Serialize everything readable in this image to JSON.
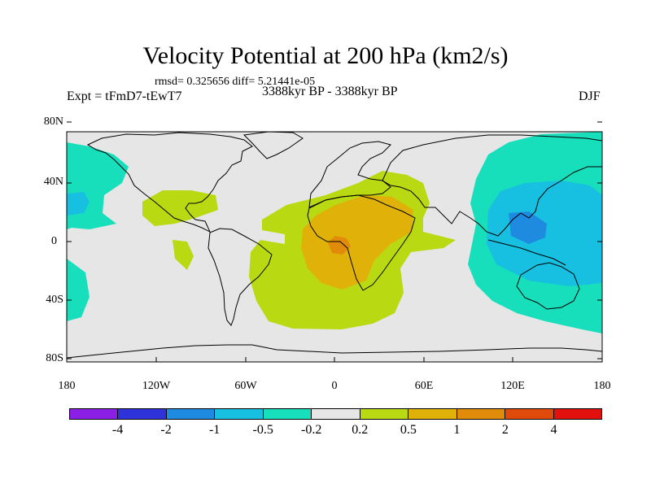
{
  "title": "Velocity Potential at 200 hPa (km2/s)",
  "stats": "rmsd= 0.325656 diff= 5.21441e-05",
  "experiment": "Expt = tFmD7-tEwT7",
  "period": "3388kyr BP - 3388kyr BP",
  "season": "DJF",
  "lat_labels": [
    "80N",
    "40N",
    "0",
    "40S",
    "80S"
  ],
  "lon_labels": [
    "180",
    "120W",
    "60W",
    "0",
    "60E",
    "120E",
    "180"
  ],
  "colorbar": {
    "colors": [
      "#8b1fe6",
      "#2e33d9",
      "#1e8ae0",
      "#17c0e0",
      "#17dfbb",
      "#e6e6e6",
      "#b9da12",
      "#e0b209",
      "#e08b0a",
      "#e04a0b",
      "#e3110e"
    ],
    "labels": [
      "-4",
      "-2",
      "-1",
      "-0.5",
      "-0.2",
      "0.2",
      "0.5",
      "1",
      "2",
      "4"
    ]
  },
  "map_colors": {
    "ocean": "#e6e6e6",
    "coast": "#000000"
  }
}
